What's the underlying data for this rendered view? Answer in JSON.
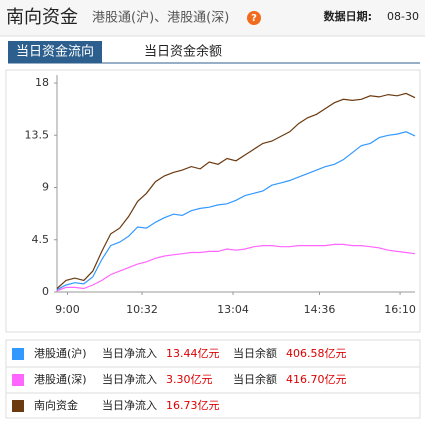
{
  "header": {
    "title": "南向资金",
    "subtitle": "港股通(沪)、港股通(深)",
    "help": "?",
    "date_label": "数据日期:",
    "date": "08-30"
  },
  "tabs": [
    "当日资金流向",
    "当日资金余额"
  ],
  "legend": {
    "net_label": "当日净流入",
    "balance_label": "当日余额"
  },
  "chart_data": {
    "type": "line",
    "x": [
      0,
      6,
      12,
      18,
      24,
      30,
      36,
      42,
      48,
      54,
      60,
      66,
      72,
      78,
      84,
      90,
      96,
      102,
      108,
      114,
      120,
      126,
      132,
      138,
      144,
      150,
      156,
      162,
      168,
      174,
      180,
      186,
      192,
      198,
      204,
      210,
      216,
      222,
      228,
      234,
      240
    ],
    "xlim": [
      0,
      240
    ],
    "xticks": [
      {
        "value": 7,
        "label": "9:00"
      },
      {
        "value": 57,
        "label": "10:32"
      },
      {
        "value": 118,
        "label": "13:04"
      },
      {
        "value": 176,
        "label": "14:36"
      },
      {
        "value": 230,
        "label": "16:10"
      }
    ],
    "ylim": [
      0,
      18
    ],
    "yticks": [
      0,
      4.5,
      9,
      13.5,
      18
    ],
    "series": [
      {
        "name": "港股通(沪)",
        "color": "#3399ff",
        "net_inflow": "13.44亿元",
        "balance": "406.58亿元",
        "values": [
          0.2,
          0.6,
          0.8,
          0.7,
          1.3,
          2.8,
          4.0,
          4.3,
          4.8,
          5.6,
          5.5,
          6.0,
          6.4,
          6.7,
          6.6,
          7.0,
          7.2,
          7.3,
          7.5,
          7.6,
          7.9,
          8.3,
          8.5,
          8.7,
          9.2,
          9.4,
          9.6,
          9.9,
          10.2,
          10.5,
          10.8,
          11.0,
          11.4,
          12.0,
          12.6,
          12.8,
          13.3,
          13.5,
          13.6,
          13.8,
          13.44
        ]
      },
      {
        "name": "港股通(深)",
        "color": "#ff66ff",
        "net_inflow": "3.30亿元",
        "balance": "416.70亿元",
        "values": [
          0.1,
          0.4,
          0.4,
          0.3,
          0.6,
          1.0,
          1.5,
          1.8,
          2.1,
          2.4,
          2.6,
          2.9,
          3.1,
          3.2,
          3.3,
          3.4,
          3.4,
          3.5,
          3.5,
          3.7,
          3.6,
          3.7,
          3.9,
          4.0,
          4.0,
          3.9,
          3.9,
          4.0,
          4.0,
          4.0,
          4.0,
          4.1,
          4.1,
          4.0,
          4.0,
          3.9,
          3.8,
          3.6,
          3.5,
          3.4,
          3.3
        ]
      },
      {
        "name": "南向资金",
        "color": "#6b3a10",
        "net_inflow": "16.73亿元",
        "values": [
          0.3,
          1.0,
          1.2,
          1.0,
          1.8,
          3.5,
          5.0,
          5.5,
          6.5,
          7.8,
          8.5,
          9.5,
          10.0,
          10.3,
          10.5,
          10.8,
          10.6,
          11.2,
          11.0,
          11.5,
          11.3,
          11.8,
          12.3,
          12.8,
          13.0,
          13.4,
          13.8,
          14.5,
          15.0,
          15.3,
          15.8,
          16.3,
          16.6,
          16.5,
          16.6,
          16.9,
          16.8,
          17.0,
          16.9,
          17.1,
          16.73
        ]
      }
    ]
  }
}
